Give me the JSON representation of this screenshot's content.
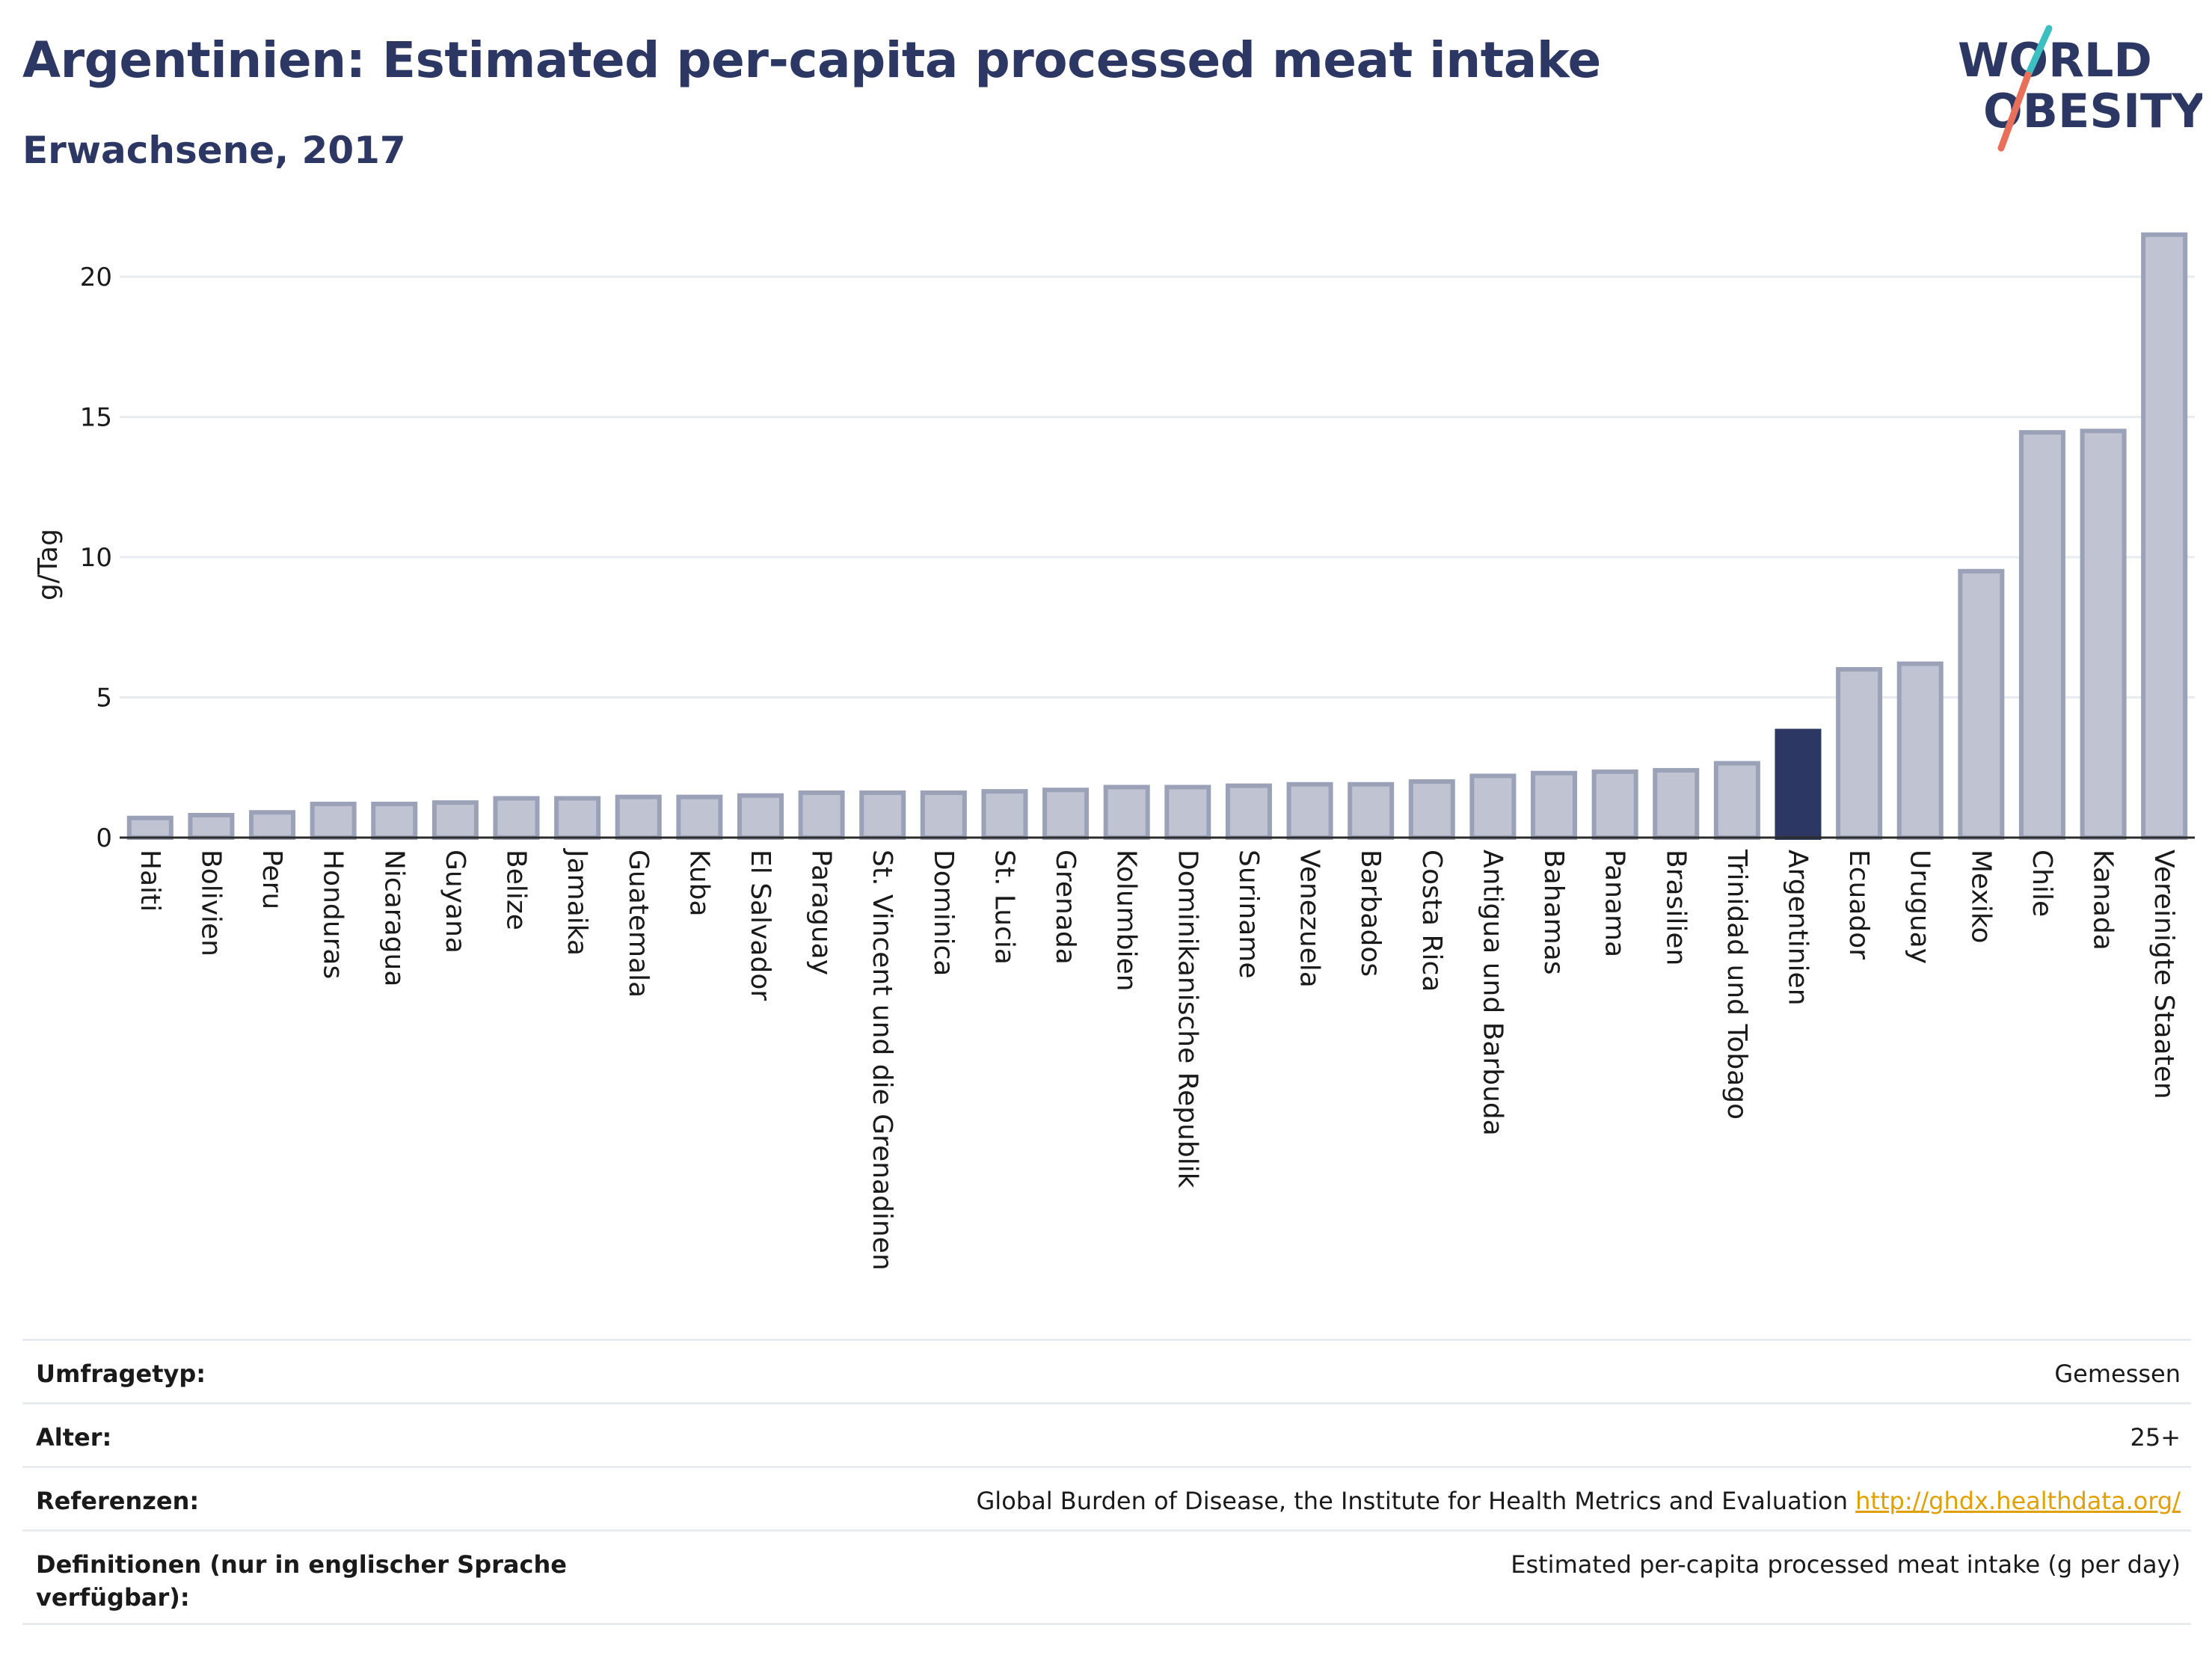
{
  "header": {
    "title": "Argentinien: Estimated per-capita processed meat intake",
    "subtitle": "Erwachsene, 2017"
  },
  "logo": {
    "line1": "WORLD",
    "line2": "OBESITY",
    "colors": {
      "text": "#2c3863",
      "teal": "#3cbfc0",
      "coral": "#e8705a"
    }
  },
  "colors": {
    "title": "#2c3863",
    "bar_default": "#c0c4d2",
    "bar_default_stroke": "#9ba2b8",
    "bar_highlight": "#2c3863",
    "grid": "#e6ecef",
    "link": "#e0a100"
  },
  "chart_data": {
    "type": "bar",
    "title": "Argentinien: Estimated per-capita processed meat intake",
    "subtitle": "Erwachsene, 2017",
    "ylabel": "g/Tag",
    "xlabel": "",
    "ylim": [
      0,
      22
    ],
    "yticks": [
      0,
      5,
      10,
      15,
      20
    ],
    "grid": true,
    "highlight": "Argentinien",
    "categories": [
      "Haiti",
      "Bolivien",
      "Peru",
      "Honduras",
      "Nicaragua",
      "Guyana",
      "Belize",
      "Jamaika",
      "Guatemala",
      "Kuba",
      "El Salvador",
      "Paraguay",
      "St. Vincent und die Grenadinen",
      "Dominica",
      "St. Lucia",
      "Grenada",
      "Kolumbien",
      "Dominikanische Republik",
      "Suriname",
      "Venezuela",
      "Barbados",
      "Costa Rica",
      "Antigua und Barbuda",
      "Bahamas",
      "Panama",
      "Brasilien",
      "Trinidad und Tobago",
      "Argentinien",
      "Ecuador",
      "Uruguay",
      "Mexiko",
      "Chile",
      "Kanada",
      "Vereinigte Staaten"
    ],
    "values": [
      0.7,
      0.8,
      0.9,
      1.2,
      1.2,
      1.25,
      1.4,
      1.4,
      1.45,
      1.45,
      1.5,
      1.6,
      1.6,
      1.6,
      1.65,
      1.7,
      1.8,
      1.8,
      1.85,
      1.9,
      1.9,
      2.0,
      2.2,
      2.3,
      2.35,
      2.4,
      2.65,
      3.8,
      6.0,
      6.2,
      9.5,
      14.45,
      14.5,
      21.5
    ]
  },
  "info": [
    {
      "label": "Umfragetyp:",
      "value": "Gemessen"
    },
    {
      "label": "Alter:",
      "value": "25+"
    },
    {
      "label": "Referenzen:",
      "value": "Global Burden of Disease, the Institute for Health Metrics and Evaluation",
      "link": "http://ghdx.healthdata.org/"
    },
    {
      "label": "Definitionen (nur in englischer Sprache verfügbar):",
      "value": "Estimated per-capita processed meat intake (g per day)"
    }
  ]
}
